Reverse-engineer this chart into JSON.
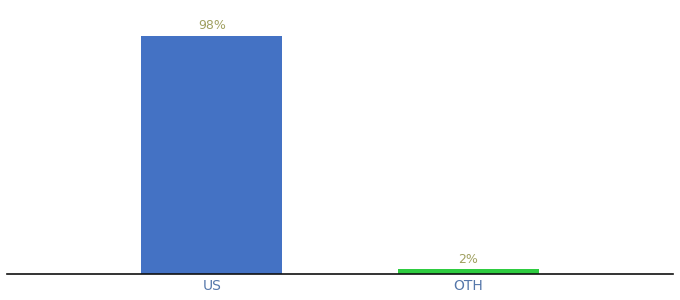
{
  "categories": [
    "US",
    "OTH"
  ],
  "values": [
    98,
    2
  ],
  "bar_colors": [
    "#4472c4",
    "#2ecc40"
  ],
  "value_labels": [
    "98%",
    "2%"
  ],
  "label_color": "#a0a060",
  "ylim": [
    0,
    110
  ],
  "bar_width": 0.55,
  "background_color": "#ffffff",
  "label_fontsize": 9,
  "tick_fontsize": 10,
  "tick_color": "#5577aa"
}
